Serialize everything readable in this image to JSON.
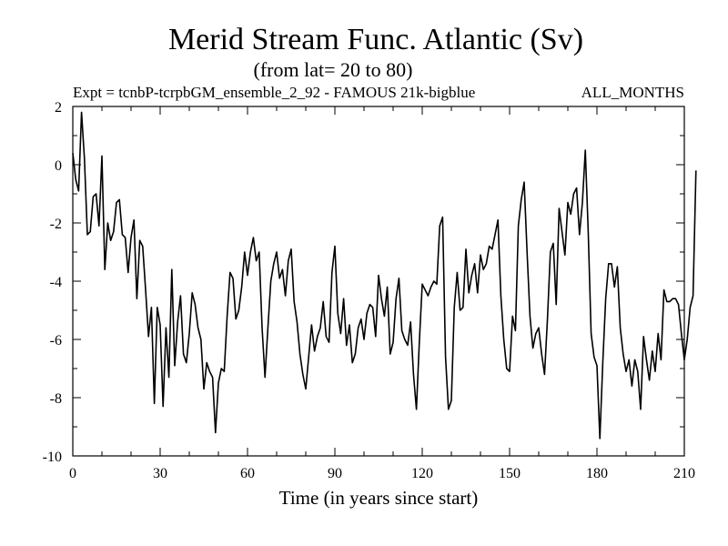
{
  "chart_data": {
    "type": "line",
    "title": "Merid Stream Func. Atlantic (Sv)",
    "subtitle": "(from lat= 20 to 80)",
    "expt_label": "Expt = tcnbP-tcrpbGM_ensemble_2_92 - FAMOUS 21k-bigblue",
    "months_label": "ALL_MONTHS",
    "xlabel": "Time (in years since start)",
    "ylabel": "",
    "xlim": [
      0,
      210
    ],
    "ylim": [
      -10,
      2
    ],
    "x_ticks": [
      0,
      30,
      60,
      90,
      120,
      150,
      180,
      210
    ],
    "y_ticks": [
      -10,
      -8,
      -6,
      -4,
      -2,
      0,
      2
    ],
    "grid": false,
    "series": [
      {
        "name": "Merid Stream Func. Atlantic",
        "x_start": 0,
        "x_step": 1,
        "values": [
          0.4,
          -0.5,
          -0.9,
          1.8,
          0.2,
          -2.4,
          -2.3,
          -1.1,
          -1.0,
          -2.1,
          0.3,
          -3.6,
          -2.0,
          -2.6,
          -2.3,
          -1.3,
          -1.2,
          -2.4,
          -2.5,
          -3.7,
          -2.5,
          -1.9,
          -4.6,
          -2.6,
          -2.8,
          -4.3,
          -5.9,
          -4.9,
          -8.2,
          -4.9,
          -5.5,
          -8.3,
          -5.6,
          -7.3,
          -3.6,
          -6.9,
          -5.4,
          -4.5,
          -6.5,
          -6.8,
          -5.8,
          -4.4,
          -4.8,
          -5.6,
          -6.0,
          -7.7,
          -6.8,
          -7.1,
          -7.3,
          -9.2,
          -7.5,
          -7.0,
          -7.1,
          -5.2,
          -3.7,
          -3.9,
          -5.3,
          -5.0,
          -4.2,
          -3.0,
          -3.8,
          -3.0,
          -2.5,
          -3.3,
          -3.0,
          -5.6,
          -7.3,
          -5.6,
          -4.0,
          -3.4,
          -3.0,
          -3.9,
          -3.6,
          -4.5,
          -3.3,
          -2.9,
          -4.7,
          -5.4,
          -6.5,
          -7.2,
          -7.7,
          -6.6,
          -5.5,
          -6.4,
          -5.9,
          -5.6,
          -4.7,
          -5.9,
          -6.1,
          -3.7,
          -2.8,
          -5.1,
          -5.8,
          -4.6,
          -6.2,
          -5.5,
          -6.8,
          -6.5,
          -5.6,
          -5.3,
          -6.0,
          -5.1,
          -4.8,
          -4.9,
          -5.9,
          -3.8,
          -4.6,
          -5.2,
          -4.2,
          -6.5,
          -6.1,
          -4.6,
          -3.9,
          -5.7,
          -6.0,
          -6.2,
          -5.4,
          -7.2,
          -8.4,
          -6.1,
          -4.1,
          -4.3,
          -4.5,
          -4.2,
          -4.0,
          -4.1,
          -2.1,
          -1.8,
          -6.6,
          -8.4,
          -8.1,
          -4.9,
          -3.7,
          -5.0,
          -4.9,
          -2.9,
          -4.4,
          -3.8,
          -3.4,
          -4.4,
          -3.1,
          -3.6,
          -3.4,
          -2.8,
          -2.9,
          -2.4,
          -1.9,
          -4.5,
          -6.0,
          -7.0,
          -7.1,
          -5.2,
          -5.7,
          -2.1,
          -1.2,
          -0.6,
          -3.0,
          -5.2,
          -6.3,
          -5.8,
          -5.6,
          -6.5,
          -7.2,
          -5.3,
          -3.0,
          -2.7,
          -4.8,
          -1.5,
          -2.3,
          -3.1,
          -1.3,
          -1.7,
          -1.0,
          -0.8,
          -2.4,
          -1.3,
          0.5,
          -2.3,
          -5.8,
          -6.6,
          -6.9,
          -9.4,
          -6.8,
          -4.6,
          -3.4,
          -3.4,
          -4.2,
          -3.5,
          -5.6,
          -6.5,
          -7.1,
          -6.7,
          -7.6,
          -6.7,
          -7.1,
          -8.4,
          -5.9,
          -6.7,
          -7.4,
          -6.4,
          -7.1,
          -5.8,
          -6.7,
          -4.3,
          -4.7,
          -4.7,
          -4.6,
          -4.6,
          -4.8,
          -5.8,
          -6.7,
          -6.0,
          -4.9,
          -4.5,
          -0.2
        ]
      }
    ]
  }
}
